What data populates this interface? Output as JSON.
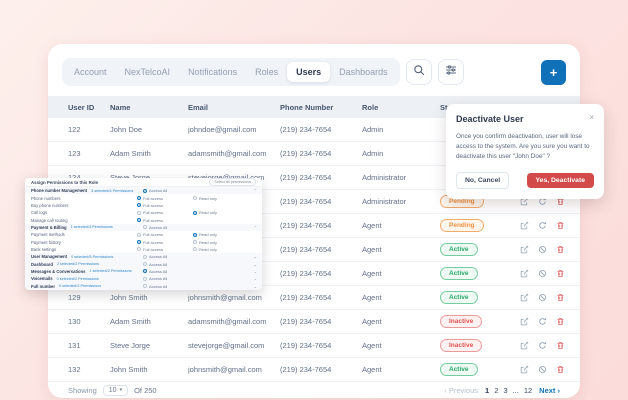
{
  "colors": {
    "accent_blue": "#1071b8",
    "danger_red": "#d24a4a",
    "pending": "#ee8f3e",
    "active": "#2ca86a",
    "inactive": "#df5050",
    "background_pink": "#fce4e2"
  },
  "toolbar": {
    "tabs": [
      {
        "label": "Account",
        "active": false
      },
      {
        "label": "NexTelcoAI",
        "active": false
      },
      {
        "label": "Notifications",
        "active": false
      },
      {
        "label": "Roles",
        "active": false
      },
      {
        "label": "Users",
        "active": true
      },
      {
        "label": "Dashboards",
        "active": false
      }
    ],
    "icons": [
      "search-icon",
      "filter-icon"
    ],
    "add_button_label": "+"
  },
  "table": {
    "columns": [
      "User ID",
      "Name",
      "Email",
      "Phone Number",
      "Role",
      "Status"
    ],
    "rows": [
      {
        "id": "122",
        "name": "John Doe",
        "email": "johndoe@gmail.com",
        "phone": "(219) 234-7654",
        "role": "Admin",
        "status": "",
        "actions": []
      },
      {
        "id": "123",
        "name": "Adam Smith",
        "email": "adamsmith@gmail.com",
        "phone": "(219) 234-7654",
        "role": "Admin",
        "status": "",
        "actions": []
      },
      {
        "id": "124",
        "name": "Steve Jorge",
        "email": "stevejorge@gmail.com",
        "phone": "(219) 234-7654",
        "role": "Administrator",
        "status": "",
        "actions": []
      },
      {
        "id": "",
        "name": "",
        "email": "",
        "phone": "(219) 234-7654",
        "role": "Administrator",
        "status": "Pending",
        "actions": [
          "edit",
          "refresh",
          "delete"
        ]
      },
      {
        "id": "",
        "name": "",
        "email": "",
        "phone": "(219) 234-7654",
        "role": "Agent",
        "status": "Pending",
        "actions": [
          "edit",
          "refresh",
          "delete"
        ]
      },
      {
        "id": "",
        "name": "",
        "email": "",
        "phone": "(219) 234-7654",
        "role": "Agent",
        "status": "Active",
        "actions": [
          "edit",
          "block",
          "delete"
        ]
      },
      {
        "id": "",
        "name": "",
        "email": "",
        "phone": "(219) 234-7654",
        "role": "Agent",
        "status": "Active",
        "actions": [
          "edit",
          "block",
          "delete"
        ]
      },
      {
        "id": "129",
        "name": "John Smith",
        "email": "johnsmith@gmail.com",
        "phone": "(219) 234-7654",
        "role": "Agent",
        "status": "Active",
        "actions": [
          "edit",
          "block",
          "delete"
        ]
      },
      {
        "id": "130",
        "name": "Adam Smith",
        "email": "adamsmith@gmail.com",
        "phone": "(219) 234-7654",
        "role": "Agent",
        "status": "Inactive",
        "actions": [
          "edit",
          "refresh",
          "delete"
        ]
      },
      {
        "id": "131",
        "name": "Steve Jorge",
        "email": "stevejorge@gmail.com",
        "phone": "(219) 234-7654",
        "role": "Agent",
        "status": "Inactive",
        "actions": [
          "edit",
          "refresh",
          "delete"
        ]
      },
      {
        "id": "132",
        "name": "John Smith",
        "email": "johnsmith@gmail.com",
        "phone": "(219) 234-7654",
        "role": "Agent",
        "status": "Active",
        "actions": [
          "edit",
          "block",
          "delete"
        ]
      }
    ],
    "footer": {
      "showing_label": "Showing",
      "page_size": "10",
      "total_label": "Of 250"
    },
    "pagination": {
      "previous": "‹ Previous",
      "pages": [
        "1",
        "2",
        "3",
        "...",
        "12"
      ],
      "next": "Next ›"
    }
  },
  "modal": {
    "title": "Deactivate User",
    "close": "×",
    "body": "Once you confirm deactivation, user will lose access to the system. Are you sure you want to deactivate this user \"John Doe\" ?",
    "cancel_label": "No, Cancel",
    "confirm_label": "Yes, Deactivate"
  },
  "permissions_panel": {
    "title": "Assign Permissions to this Role",
    "select_all_label": "Select all permissions",
    "access_all_label": "Access All",
    "full_access_label": "Full access",
    "read_only_label": "Read only",
    "rows": [
      {
        "type": "section",
        "label": "Phone number Management",
        "link": "3 selected/4 Permissions",
        "access_all": "sel",
        "expanded": true
      },
      {
        "type": "item",
        "label": "Phone numbers",
        "full": "sel",
        "read": "un"
      },
      {
        "type": "item",
        "label": "Buy phone numbers",
        "full": "sel",
        "read": "none"
      },
      {
        "type": "item",
        "label": "Call logs",
        "full": "un",
        "read": "sel"
      },
      {
        "type": "item",
        "label": "Manage call routing",
        "full": "sel",
        "read": "none"
      },
      {
        "type": "section",
        "label": "Payment & Billing",
        "link": "1 selected/3 Permissions",
        "access_all": "un",
        "expanded": true
      },
      {
        "type": "item",
        "label": "Payment methods",
        "full": "un",
        "read": "sel"
      },
      {
        "type": "item",
        "label": "Payment history",
        "full": "sel",
        "read": "un"
      },
      {
        "type": "item",
        "label": "Bank settings",
        "full": "un",
        "read": "un"
      },
      {
        "type": "section",
        "label": "User Management",
        "link": "0 selected/5 Permissions",
        "access_all": "un",
        "expanded": false
      },
      {
        "type": "section",
        "label": "Dashboard",
        "link": "2 selected/2 Permissions",
        "access_all": "un",
        "expanded": false
      },
      {
        "type": "section",
        "label": "Messages & Conversations",
        "link": "1 selected/2 Permissions",
        "access_all": "sel",
        "expanded": false
      },
      {
        "type": "section",
        "label": "Voicemails",
        "link": "0 selected/2 Permissions",
        "access_all": "un",
        "expanded": false
      },
      {
        "type": "section",
        "label": "Full number",
        "link": "0 selected/2 Permissions",
        "access_all": "un",
        "expanded": false
      }
    ]
  }
}
